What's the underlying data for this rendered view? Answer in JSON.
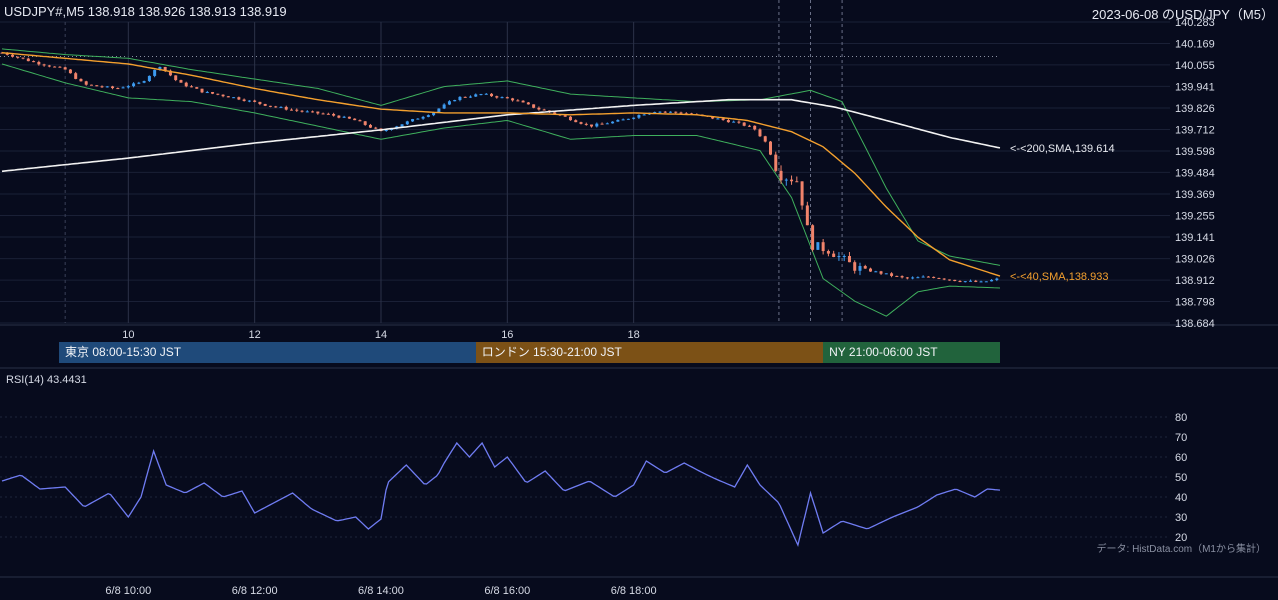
{
  "header": {
    "symbol_line": "USDJPY#,M5 138.918 138.926 138.913 138.919",
    "title": "2023-06-08 のUSD/JPY（M5）"
  },
  "colors": {
    "background": "#070b1d",
    "up": "#3d9bf0",
    "down": "#f0836b",
    "sma40": "#f4a02e",
    "sma200": "#f2f2f2",
    "bollinger": "#3fb05d",
    "rsi": "#6f7cf2",
    "tokyo": "#1f4a7a",
    "london": "#7c5116",
    "ny": "#21633c"
  },
  "sessions": [
    {
      "label": "東京 08:00-15:30 JST",
      "start": "08:00",
      "end": "15:30"
    },
    {
      "label": "ロンドン 15:30-21:00 JST",
      "start": "15:30",
      "end": "21:00"
    },
    {
      "label": "NY 21:00-06:00 JST",
      "start": "21:00",
      "end": "06:00"
    }
  ],
  "rsi_label": "RSI(14) 43.4431",
  "source_note": "データ: HistData.com（M1から集計）",
  "chart_data": [
    {
      "type": "candlestick",
      "title": "2023-06-08 のUSD/JPY（M5）",
      "x_ticks": [
        "10",
        "12",
        "14",
        "16",
        "18"
      ],
      "x_tick_hours": [
        10,
        12,
        14,
        16,
        18
      ],
      "x_range_hours": [
        8.0,
        23.8
      ],
      "y_ticks": [
        "140.283",
        "140.169",
        "140.055",
        "139.941",
        "139.826",
        "139.712",
        "139.598",
        "139.484",
        "139.369",
        "139.255",
        "139.141",
        "139.026",
        "138.912",
        "138.798",
        "138.684"
      ],
      "ylim": [
        138.684,
        140.283
      ],
      "reference_level": 140.1,
      "event_lines_hours": [
        20.3,
        20.8,
        21.3
      ],
      "candles_note": "approximate M5 close path, hourly keypoints",
      "close_keypoints": [
        [
          8.0,
          140.12
        ],
        [
          8.5,
          140.07
        ],
        [
          9.0,
          140.03
        ],
        [
          9.3,
          139.95
        ],
        [
          9.8,
          139.93
        ],
        [
          10.2,
          139.96
        ],
        [
          10.5,
          140.05
        ],
        [
          10.8,
          139.96
        ],
        [
          11.2,
          139.91
        ],
        [
          11.7,
          139.88
        ],
        [
          12.2,
          139.84
        ],
        [
          12.7,
          139.81
        ],
        [
          13.2,
          139.79
        ],
        [
          13.6,
          139.76
        ],
        [
          14.0,
          139.7
        ],
        [
          14.4,
          139.75
        ],
        [
          14.8,
          139.8
        ],
        [
          15.2,
          139.88
        ],
        [
          15.6,
          139.9
        ],
        [
          16.1,
          139.87
        ],
        [
          16.5,
          139.82
        ],
        [
          16.9,
          139.78
        ],
        [
          17.3,
          139.73
        ],
        [
          17.8,
          139.76
        ],
        [
          18.3,
          139.81
        ],
        [
          18.8,
          139.8
        ],
        [
          19.3,
          139.77
        ],
        [
          19.6,
          139.75
        ],
        [
          19.9,
          139.72
        ],
        [
          20.1,
          139.64
        ],
        [
          20.3,
          139.47
        ],
        [
          20.6,
          139.44
        ],
        [
          20.8,
          139.1
        ],
        [
          21.1,
          139.07
        ],
        [
          21.5,
          138.98
        ],
        [
          21.9,
          138.95
        ],
        [
          22.3,
          138.92
        ],
        [
          22.7,
          138.93
        ],
        [
          23.1,
          138.91
        ],
        [
          23.5,
          138.9
        ],
        [
          23.8,
          138.92
        ]
      ],
      "sma40": {
        "label": "<-<40,SMA,138.933",
        "last": 138.933,
        "keypoints": [
          [
            8.0,
            140.12
          ],
          [
            9.0,
            140.09
          ],
          [
            10.0,
            140.06
          ],
          [
            11.0,
            140.0
          ],
          [
            12.0,
            139.93
          ],
          [
            13.0,
            139.87
          ],
          [
            14.0,
            139.82
          ],
          [
            15.0,
            139.8
          ],
          [
            16.0,
            139.8
          ],
          [
            17.0,
            139.79
          ],
          [
            18.0,
            139.8
          ],
          [
            19.0,
            139.79
          ],
          [
            19.8,
            139.76
          ],
          [
            20.5,
            139.7
          ],
          [
            21.0,
            139.62
          ],
          [
            21.5,
            139.48
          ],
          [
            22.0,
            139.3
          ],
          [
            22.5,
            139.14
          ],
          [
            23.0,
            139.02
          ],
          [
            23.8,
            138.933
          ]
        ]
      },
      "sma200": {
        "label": "<-<200,SMA,139.614",
        "last": 139.614,
        "keypoints": [
          [
            8.0,
            139.49
          ],
          [
            10.0,
            139.56
          ],
          [
            12.0,
            139.64
          ],
          [
            14.0,
            139.71
          ],
          [
            16.0,
            139.79
          ],
          [
            18.0,
            139.84
          ],
          [
            19.5,
            139.87
          ],
          [
            20.5,
            139.87
          ],
          [
            21.2,
            139.83
          ],
          [
            22.0,
            139.76
          ],
          [
            23.0,
            139.67
          ],
          [
            23.8,
            139.614
          ]
        ]
      },
      "bollinger": {
        "upper": [
          [
            8.0,
            140.14
          ],
          [
            9.0,
            140.11
          ],
          [
            10.0,
            140.09
          ],
          [
            11.0,
            140.03
          ],
          [
            12.0,
            139.98
          ],
          [
            13.0,
            139.93
          ],
          [
            14.0,
            139.84
          ],
          [
            15.0,
            139.94
          ],
          [
            16.0,
            139.97
          ],
          [
            17.0,
            139.9
          ],
          [
            18.0,
            139.88
          ],
          [
            19.0,
            139.86
          ],
          [
            20.0,
            139.87
          ],
          [
            20.8,
            139.92
          ],
          [
            21.3,
            139.86
          ],
          [
            22.0,
            139.4
          ],
          [
            22.5,
            139.12
          ],
          [
            23.0,
            139.04
          ],
          [
            23.8,
            138.99
          ]
        ],
        "lower": [
          [
            8.0,
            140.06
          ],
          [
            9.0,
            139.96
          ],
          [
            10.0,
            139.88
          ],
          [
            11.0,
            139.86
          ],
          [
            12.0,
            139.8
          ],
          [
            13.0,
            139.73
          ],
          [
            14.0,
            139.66
          ],
          [
            15.0,
            139.72
          ],
          [
            16.0,
            139.76
          ],
          [
            17.0,
            139.66
          ],
          [
            18.0,
            139.68
          ],
          [
            19.0,
            139.68
          ],
          [
            20.0,
            139.6
          ],
          [
            20.5,
            139.35
          ],
          [
            21.0,
            138.92
          ],
          [
            21.5,
            138.8
          ],
          [
            22.0,
            138.72
          ],
          [
            22.5,
            138.85
          ],
          [
            23.0,
            138.88
          ],
          [
            23.8,
            138.87
          ]
        ]
      }
    },
    {
      "type": "line",
      "title": "RSI(14) 43.4431",
      "x_ticks": [
        "6/8 10:00",
        "6/8 12:00",
        "6/8 14:00",
        "6/8 16:00",
        "6/8 18:00"
      ],
      "x_tick_hours": [
        10,
        12,
        14,
        16,
        18
      ],
      "x_range_hours": [
        8.0,
        23.8
      ],
      "y_ticks": [
        "80",
        "70",
        "60",
        "50",
        "40",
        "30",
        "20"
      ],
      "ylim": [
        15,
        88
      ],
      "last": 43.4431,
      "keypoints": [
        [
          8.0,
          48
        ],
        [
          8.3,
          51
        ],
        [
          8.6,
          44
        ],
        [
          9.0,
          45
        ],
        [
          9.3,
          35
        ],
        [
          9.7,
          42
        ],
        [
          10.0,
          30
        ],
        [
          10.2,
          40
        ],
        [
          10.4,
          63
        ],
        [
          10.6,
          46
        ],
        [
          10.9,
          42
        ],
        [
          11.2,
          47
        ],
        [
          11.5,
          40
        ],
        [
          11.8,
          43
        ],
        [
          12.0,
          32
        ],
        [
          12.3,
          37
        ],
        [
          12.6,
          42
        ],
        [
          12.9,
          34
        ],
        [
          13.3,
          28
        ],
        [
          13.6,
          30
        ],
        [
          13.8,
          24
        ],
        [
          14.0,
          29
        ],
        [
          14.1,
          47
        ],
        [
          14.4,
          56
        ],
        [
          14.7,
          46
        ],
        [
          14.9,
          51
        ],
        [
          15.0,
          57
        ],
        [
          15.2,
          67
        ],
        [
          15.4,
          60
        ],
        [
          15.6,
          67
        ],
        [
          15.8,
          55
        ],
        [
          16.0,
          60
        ],
        [
          16.3,
          47
        ],
        [
          16.6,
          53
        ],
        [
          16.9,
          43
        ],
        [
          17.3,
          48
        ],
        [
          17.7,
          40
        ],
        [
          18.0,
          46
        ],
        [
          18.2,
          58
        ],
        [
          18.5,
          52
        ],
        [
          18.8,
          57
        ],
        [
          19.1,
          52
        ],
        [
          19.3,
          49
        ],
        [
          19.6,
          45
        ],
        [
          19.8,
          56
        ],
        [
          20.0,
          46
        ],
        [
          20.3,
          37
        ],
        [
          20.6,
          16
        ],
        [
          20.8,
          42
        ],
        [
          21.0,
          22
        ],
        [
          21.3,
          28
        ],
        [
          21.7,
          24
        ],
        [
          22.1,
          30
        ],
        [
          22.5,
          35
        ],
        [
          22.8,
          41
        ],
        [
          23.1,
          44
        ],
        [
          23.4,
          40
        ],
        [
          23.6,
          44
        ],
        [
          23.8,
          43.4431
        ]
      ]
    }
  ]
}
